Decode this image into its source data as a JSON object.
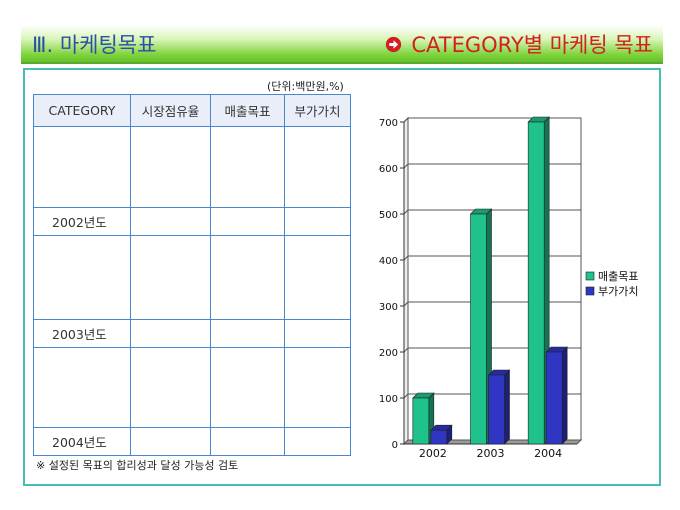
{
  "header": {
    "title": "Ⅲ. 마케팅목표",
    "subtitle": "CATEGORY별 마케팅 목표"
  },
  "table": {
    "unit_note": "(단위:백만원,%)",
    "columns": [
      "CATEGORY",
      "시장점유율",
      "매출목표",
      "부가가치"
    ],
    "rows": [
      {
        "label": "2002년도"
      },
      {
        "label": "2003년도"
      },
      {
        "label": "2004년도"
      }
    ]
  },
  "footnote": "※ 설정된 목표의 합리성과 달성 가능성 검토",
  "colors": {
    "header_green": "#7fd43c",
    "title_blue": "#2a50a8",
    "subtitle_red": "#d21f1f",
    "panel_border": "#48bdb8",
    "table_border": "#4a86d4"
  },
  "chart_data": {
    "type": "bar",
    "style": "3d-clustered-column",
    "categories": [
      "2002",
      "2003",
      "2004"
    ],
    "series": [
      {
        "name": "매출목표",
        "values": [
          100,
          500,
          700
        ],
        "color": "#1ec28a"
      },
      {
        "name": "부가가치",
        "values": [
          30,
          150,
          200
        ],
        "color": "#2f36c4"
      }
    ],
    "ylim": [
      0,
      700
    ],
    "yticks": [
      0,
      100,
      200,
      300,
      400,
      500,
      600,
      700
    ],
    "grid": true,
    "legend": "right"
  }
}
